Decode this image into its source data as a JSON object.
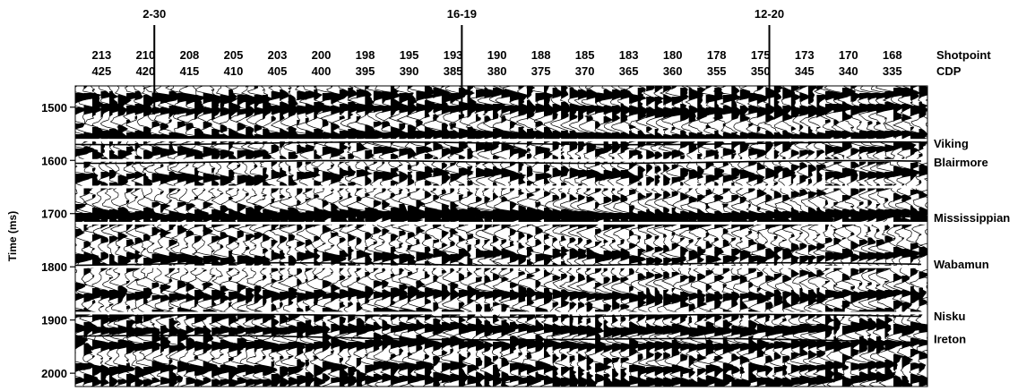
{
  "chart_data": {
    "type": "seismic-section",
    "ylabel": "Time (ms)",
    "ylim": [
      1460,
      2025
    ],
    "y_ticks": [
      1500,
      1600,
      1700,
      1800,
      1900,
      2000
    ],
    "y_tick_labels": [
      "1500",
      "1600",
      "1700",
      "1800",
      "1900",
      "2000"
    ],
    "cdp_range": [
      428,
      331
    ],
    "shotpoint_row_label": "Shotpoint",
    "cdp_row_label": "CDP",
    "shotpoints": [
      "213",
      "210",
      "208",
      "205",
      "203",
      "200",
      "198",
      "195",
      "193",
      "190",
      "188",
      "185",
      "183",
      "180",
      "178",
      "175",
      "173",
      "170",
      "168"
    ],
    "cdps": [
      425,
      420,
      415,
      410,
      405,
      400,
      395,
      390,
      385,
      380,
      375,
      370,
      365,
      360,
      355,
      350,
      345,
      340,
      335
    ],
    "cdp_labels": [
      "425",
      "420",
      "415",
      "410",
      "405",
      "400",
      "395",
      "390",
      "385",
      "380",
      "375",
      "370",
      "365",
      "360",
      "355",
      "350",
      "345",
      "340",
      "335"
    ],
    "wells": [
      {
        "name": "2-30",
        "cdp": 419
      },
      {
        "name": "16-19",
        "cdp": 384
      },
      {
        "name": "12-20",
        "cdp": 349
      }
    ],
    "horizons": [
      {
        "name": "Viking",
        "time": 1568
      },
      {
        "name": "Blairmore",
        "time": 1603
      },
      {
        "name": "Mississippian",
        "time": 1707
      },
      {
        "name": "Wabamun",
        "time": 1795
      },
      {
        "name": "Nisku",
        "time": 1892
      },
      {
        "name": "Ireton",
        "time": 1935
      }
    ]
  }
}
